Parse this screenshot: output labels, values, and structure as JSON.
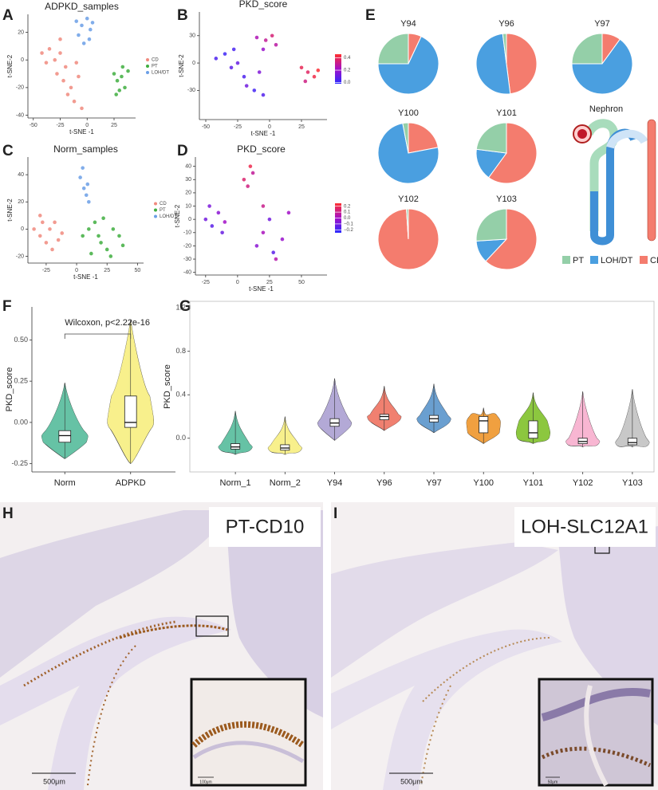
{
  "chart_data": [
    {
      "type": "scatter",
      "panel": "A",
      "title": "ADPKD_samples",
      "x_label": "t-SNE -1",
      "y_label": "t-SNE-2",
      "xlim": [
        -55,
        45
      ],
      "ylim": [
        -42,
        33
      ],
      "xticks": [
        -50,
        -25,
        0,
        25
      ],
      "yticks": [
        -40,
        -20,
        0,
        20
      ],
      "series": [
        {
          "name": "CD",
          "color": "#f08a7e",
          "x": [
            -42,
            -38,
            -35,
            -30,
            -28,
            -25,
            -22,
            -20,
            -18,
            -15,
            -12,
            -8,
            -5,
            -25,
            -10
          ],
          "values": [
            5,
            -2,
            8,
            0,
            -10,
            5,
            -15,
            -5,
            -25,
            -20,
            -30,
            -12,
            -35,
            15,
            -2
          ]
        },
        {
          "name": "PT",
          "color": "#3fae3f",
          "x": [
            25,
            28,
            32,
            35,
            30,
            38,
            27,
            33
          ],
          "values": [
            -10,
            -15,
            -12,
            -20,
            -22,
            -8,
            -25,
            -5
          ]
        },
        {
          "name": "LOH/DT",
          "color": "#6b9fe6",
          "x": [
            -10,
            -5,
            0,
            3,
            -8,
            2,
            5,
            -3
          ],
          "values": [
            28,
            25,
            30,
            22,
            18,
            15,
            27,
            12
          ]
        }
      ]
    },
    {
      "type": "scatter",
      "panel": "B",
      "title": "PKD_score",
      "x_label": "t-SNE -1",
      "y_label": "t-SNE-2",
      "xlim": [
        -55,
        45
      ],
      "ylim": [
        -62,
        56
      ],
      "xticks": [
        -50,
        -25,
        0,
        25
      ],
      "yticks": [
        -30,
        0,
        30
      ],
      "colorscale": [
        "#2b2bff",
        "#a310c8",
        "#ff3030"
      ],
      "clim": [
        -0.02,
        0.46
      ],
      "colorbar_ticks": [
        {
          "value": 0,
          "label": "0.0"
        },
        0.2,
        0.4
      ],
      "series": [
        {
          "x": [
            -42,
            -35,
            -30,
            -25,
            -20,
            -18,
            -12,
            -8,
            -5,
            -28,
            -10,
            -3,
            2,
            5,
            -5,
            25,
            30,
            35,
            28,
            38
          ],
          "values": [
            5,
            10,
            -5,
            0,
            -15,
            -25,
            -30,
            -10,
            -35,
            15,
            28,
            25,
            30,
            20,
            15,
            -5,
            -10,
            -15,
            -20,
            -8
          ],
          "scores": [
            0.05,
            0.02,
            0.08,
            0.1,
            0.05,
            0.12,
            0.03,
            0.15,
            0.06,
            0.04,
            0.25,
            0.3,
            0.35,
            0.28,
            0.2,
            0.4,
            0.38,
            0.42,
            0.33,
            0.45
          ]
        }
      ]
    },
    {
      "type": "scatter",
      "panel": "C",
      "title": "Norm_samples",
      "x_label": "t-SNE -1",
      "y_label": "t-SNE-2",
      "xlim": [
        -40,
        55
      ],
      "ylim": [
        -25,
        53
      ],
      "xticks": [
        -25,
        0,
        25,
        50
      ],
      "yticks": [
        -20,
        0,
        20,
        40
      ],
      "series": [
        {
          "name": "CD",
          "color": "#f08a7e",
          "x": [
            -35,
            -30,
            -28,
            -25,
            -22,
            -20,
            -18,
            -15,
            -12,
            -30
          ],
          "values": [
            0,
            -5,
            5,
            -10,
            0,
            -15,
            5,
            -8,
            -3,
            10
          ]
        },
        {
          "name": "PT",
          "color": "#3fae3f",
          "x": [
            5,
            10,
            15,
            20,
            25,
            30,
            35,
            12,
            22,
            28,
            18,
            38
          ],
          "values": [
            -5,
            0,
            5,
            -10,
            -15,
            0,
            -5,
            -18,
            8,
            -20,
            -5,
            -12
          ]
        },
        {
          "name": "LOH/DT",
          "color": "#6b9fe6",
          "x": [
            3,
            6,
            8,
            10,
            5,
            9
          ],
          "values": [
            38,
            30,
            25,
            20,
            45,
            33
          ]
        }
      ]
    },
    {
      "type": "scatter",
      "panel": "D",
      "title": "PKD_score",
      "x_label": "t-SNE -1",
      "y_label": "t-SNE-2",
      "xlim": [
        -33,
        70
      ],
      "ylim": [
        -42,
        47
      ],
      "xticks": [
        -25,
        0,
        25,
        50
      ],
      "yticks": [
        -40,
        -30,
        -20,
        -10,
        0,
        10,
        20,
        30,
        40
      ],
      "colorscale": [
        "#2b2bff",
        "#a310c8",
        "#ff3030"
      ],
      "clim": [
        -0.25,
        0.25
      ],
      "colorbar_ticks": [
        {
          "value": -0.2,
          "label": "−0.2"
        },
        {
          "value": -0.1,
          "label": "−0.1"
        },
        {
          "value": 0,
          "label": "0.0"
        },
        0.1,
        0.2
      ],
      "series": [
        {
          "x": [
            -25,
            -20,
            -15,
            -12,
            -22,
            -10,
            15,
            20,
            25,
            30,
            35,
            40,
            28,
            20,
            5,
            10,
            8,
            12
          ],
          "values": [
            0,
            -5,
            5,
            -10,
            10,
            -2,
            -20,
            -10,
            0,
            -30,
            -15,
            5,
            -25,
            10,
            30,
            40,
            25,
            35
          ],
          "scores": [
            -0.1,
            -0.15,
            -0.05,
            -0.12,
            -0.08,
            0.0,
            -0.05,
            0.02,
            -0.1,
            0.05,
            -0.02,
            0.0,
            -0.15,
            0.1,
            0.15,
            0.2,
            0.12,
            0.08
          ]
        }
      ]
    },
    {
      "type": "pie",
      "panel": "E",
      "annotation": "Nephron",
      "categories": [
        "PT",
        "LOH/DT",
        "CD"
      ],
      "colors": [
        "#94cfa8",
        "#4a9fe0",
        "#f47c6e"
      ],
      "pies": [
        {
          "title": "Y94",
          "values": [
            25,
            68,
            7
          ]
        },
        {
          "title": "Y96",
          "values": [
            2,
            50,
            48
          ]
        },
        {
          "title": "Y97",
          "values": [
            25,
            65,
            10
          ]
        },
        {
          "title": "Y100",
          "values": [
            3,
            75,
            22
          ]
        },
        {
          "title": "Y101",
          "values": [
            23,
            17,
            60
          ]
        },
        {
          "title": "Y102",
          "values": [
            1,
            0,
            99
          ]
        },
        {
          "title": "Y103",
          "values": [
            26,
            12,
            62
          ]
        }
      ]
    },
    {
      "type": "violin",
      "panel": "F",
      "y_label": "PKD_score",
      "annotation": "Wilcoxon, p<2.22e-16",
      "categories": [
        "Norm",
        "ADPKD"
      ],
      "colors": [
        "#66c2a5",
        "#f7f08c"
      ],
      "min": [
        -0.22,
        -0.25
      ],
      "q1": [
        -0.12,
        -0.03
      ],
      "median": [
        -0.08,
        0.0
      ],
      "q3": [
        -0.05,
        0.16
      ],
      "max": [
        0.24,
        0.62
      ],
      "ylim": [
        -0.3,
        0.7
      ],
      "yticks": [
        -0.25,
        {
          "value": 0,
          "label": "0.00"
        },
        0.25,
        {
          "value": 0.5,
          "label": "0.50"
        }
      ]
    },
    {
      "type": "violin",
      "panel": "G",
      "y_label": "PKD_score",
      "frame": true,
      "categories": [
        "Norm_1",
        "Norm_2",
        "Y94",
        "Y96",
        "Y97",
        "Y100",
        "Y101",
        "Y102",
        "Y103"
      ],
      "colors": [
        "#66c2a5",
        "#f7f08c",
        "#b3a9d6",
        "#f08070",
        "#6a9fcf",
        "#f0a040",
        "#8cc63f",
        "#f7b6d2",
        "#c8c8c8"
      ],
      "min": [
        -0.15,
        -0.15,
        -0.02,
        0.07,
        0.05,
        -0.05,
        -0.05,
        -0.08,
        -0.08
      ],
      "q1": [
        -0.1,
        -0.11,
        0.11,
        0.17,
        0.15,
        0.05,
        0.0,
        -0.05,
        -0.06
      ],
      "median": [
        -0.08,
        -0.09,
        0.14,
        0.2,
        0.18,
        0.16,
        0.05,
        -0.03,
        -0.04
      ],
      "q3": [
        -0.05,
        -0.06,
        0.18,
        0.22,
        0.21,
        0.2,
        0.16,
        0.0,
        0.0
      ],
      "max": [
        0.25,
        0.2,
        0.55,
        0.48,
        0.5,
        0.28,
        0.42,
        0.43,
        0.45
      ],
      "ylim": [
        -0.31,
        1.26
      ],
      "yticks": [
        {
          "value": 0,
          "label": "0.0"
        },
        0.4,
        0.8,
        1.2
      ]
    }
  ],
  "micrographs": [
    {
      "panel": "H",
      "stain": "PT-CD10",
      "scale_bar": "500μm",
      "inset_scale_bar": "100μm"
    },
    {
      "panel": "I",
      "stain": "LOH-SLC12A1",
      "scale_bar": "500μm",
      "inset_scale_bar": "50μm"
    }
  ]
}
